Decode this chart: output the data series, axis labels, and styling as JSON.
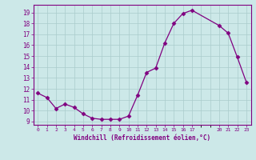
{
  "x": [
    0,
    1,
    2,
    3,
    4,
    5,
    6,
    7,
    8,
    9,
    10,
    11,
    12,
    13,
    14,
    15,
    16,
    17,
    20,
    21,
    22,
    23
  ],
  "y": [
    11.6,
    11.2,
    10.2,
    10.6,
    10.3,
    9.7,
    9.3,
    9.2,
    9.2,
    9.2,
    9.5,
    11.4,
    13.5,
    13.9,
    16.2,
    18.0,
    18.9,
    19.2,
    17.8,
    17.1,
    14.9,
    12.6
  ],
  "line_color": "#800080",
  "marker": "D",
  "marker_size": 2.5,
  "bg_color": "#cce8e8",
  "grid_color": "#aacccc",
  "xlabel": "Windchill (Refroidissement éolien,°C)",
  "xlabel_color": "#800080",
  "tick_color": "#800080",
  "ylim": [
    8.7,
    19.7
  ],
  "yticks": [
    9,
    10,
    11,
    12,
    13,
    14,
    15,
    16,
    17,
    18,
    19
  ],
  "xticks": [
    0,
    1,
    2,
    3,
    4,
    5,
    6,
    7,
    8,
    9,
    10,
    11,
    12,
    13,
    14,
    15,
    16,
    17,
    20,
    21,
    22,
    23
  ],
  "xlim": [
    -0.5,
    23.5
  ]
}
